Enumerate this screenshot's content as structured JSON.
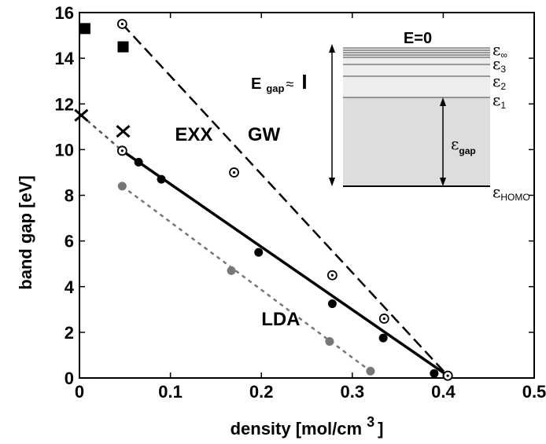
{
  "chart_data": {
    "type": "line",
    "title": "",
    "xlabel": "density [mol/cm",
    "xlabel_sup": "3",
    "xlabel_close": "]",
    "ylabel": "band gap [eV]",
    "xlim": [
      0,
      0.5
    ],
    "ylim": [
      0,
      16
    ],
    "xticks": [
      0,
      0.1,
      0.2,
      0.3,
      0.4,
      0.5
    ],
    "xtick_labels": [
      "0",
      "0.1",
      "0.2",
      "0.3",
      "0.4",
      "0.5"
    ],
    "yticks": [
      0,
      2,
      4,
      6,
      8,
      10,
      12,
      14,
      16
    ],
    "ytick_labels": [
      "0",
      "2",
      "4",
      "6",
      "8",
      "10",
      "12",
      "14",
      "16"
    ],
    "grid": false,
    "series": [
      {
        "name": "GW",
        "style": "dashed",
        "color": "#000000",
        "marker": "circle-dot",
        "points": [
          [
            0.047,
            15.5
          ],
          [
            0.17,
            9.0
          ],
          [
            0.278,
            4.5
          ],
          [
            0.335,
            2.6
          ],
          [
            0.405,
            0.1
          ]
        ],
        "line": [
          [
            0.047,
            15.5
          ],
          [
            0.405,
            0.1
          ]
        ]
      },
      {
        "name": "EXX",
        "style": "solid",
        "color": "#000000",
        "marker": "mixed",
        "points": [
          [
            0.047,
            9.95,
            "open"
          ],
          [
            0.065,
            9.45,
            "filled"
          ],
          [
            0.09,
            8.7,
            "filled"
          ],
          [
            0.197,
            5.5,
            "filled"
          ],
          [
            0.278,
            3.25,
            "filled"
          ],
          [
            0.334,
            1.75,
            "filled"
          ],
          [
            0.39,
            0.2,
            "filled"
          ],
          [
            0.405,
            0.1,
            "open"
          ]
        ],
        "line": [
          [
            0.047,
            9.95
          ],
          [
            0.405,
            0.1
          ]
        ]
      },
      {
        "name": "LDA",
        "style": "dotted",
        "color": "#777777",
        "marker": "filled-circle",
        "points": [
          [
            0.047,
            8.4
          ],
          [
            0.167,
            4.7
          ],
          [
            0.275,
            1.6
          ],
          [
            0.32,
            0.3
          ]
        ],
        "line": [
          [
            0.047,
            8.4
          ],
          [
            0.32,
            0.3
          ]
        ]
      },
      {
        "name": "",
        "style": "dotted",
        "color": "#555555",
        "marker": "cross",
        "points": [
          [
            0.002,
            11.5
          ],
          [
            0.048,
            10.8
          ]
        ],
        "line": [
          [
            0.002,
            11.5
          ],
          [
            0.047,
            9.95
          ]
        ]
      },
      {
        "name": "",
        "style": "none",
        "color": "#000000",
        "marker": "filled-square",
        "points": [
          [
            0.006,
            15.3
          ],
          [
            0.048,
            14.5
          ]
        ]
      }
    ],
    "series_labels": [
      {
        "text": "EXX",
        "x": 0.105,
        "y": 10.4
      },
      {
        "text": "GW",
        "x": 0.185,
        "y": 10.4
      },
      {
        "text": "LDA",
        "x": 0.2,
        "y": 2.3
      }
    ],
    "inset": {
      "top_label": "E=0",
      "gap_label_main": "E",
      "gap_label_sub": "gap",
      "gap_label_approx": "≈",
      "gap_label_end": "I",
      "inner_gap_main": "ε",
      "inner_gap_sub": "gap",
      "levels": [
        {
          "main": "ε",
          "sub": "∞"
        },
        {
          "main": "ε",
          "sub": "3"
        },
        {
          "main": "ε",
          "sub": "2"
        },
        {
          "main": "ε",
          "sub": "1"
        },
        {
          "main": "ε",
          "sub": "HOMO"
        }
      ]
    }
  }
}
